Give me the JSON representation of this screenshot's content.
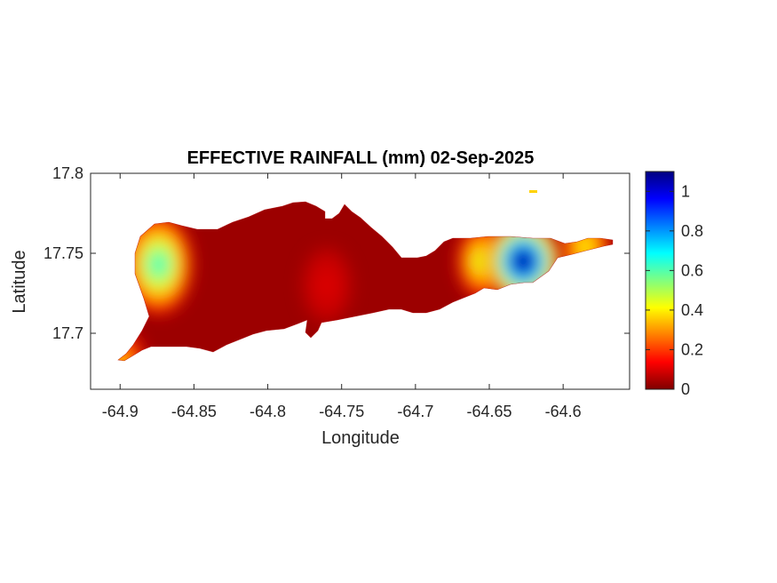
{
  "chart_data": {
    "type": "heatmap",
    "title": "EFFECTIVE RAINFALL (mm) 02-Sep-2025",
    "xlabel": "Longitude",
    "ylabel": "Latitude",
    "xlim": [
      -64.92,
      -64.555
    ],
    "ylim": [
      17.665,
      17.8
    ],
    "xticks": [
      -64.9,
      -64.85,
      -64.8,
      -64.75,
      -64.7,
      -64.65,
      -64.6
    ],
    "xtick_labels": [
      "-64.9",
      "-64.85",
      "-64.8",
      "-64.75",
      "-64.7",
      "-64.65",
      "-64.6"
    ],
    "yticks": [
      17.7,
      17.75,
      17.8
    ],
    "ytick_labels": [
      "17.7",
      "17.75",
      "17.8"
    ],
    "colormap": "jet",
    "clim": [
      0,
      1.1
    ],
    "colorbar_ticks": [
      0,
      0.2,
      0.4,
      0.6,
      0.8,
      1
    ],
    "colorbar_tick_labels": [
      "0",
      "0.2",
      "0.4",
      "0.6",
      "0.8",
      "1"
    ],
    "colorbar_position": "right",
    "grid": false,
    "rainfall_hotspots": [
      {
        "lon": -64.874,
        "lat": 17.743,
        "value": 0.62
      },
      {
        "lon": -64.627,
        "lat": 17.745,
        "value": 1.1
      },
      {
        "lon": -64.655,
        "lat": 17.745,
        "value": 0.45
      },
      {
        "lon": -64.885,
        "lat": 17.745,
        "value": 0.3
      },
      {
        "lon": -64.9,
        "lat": 17.68,
        "value": 0.35
      },
      {
        "lon": -64.585,
        "lat": 17.754,
        "value": 0.4
      },
      {
        "lon": -64.76,
        "lat": 17.73,
        "value": 0.1
      }
    ]
  }
}
